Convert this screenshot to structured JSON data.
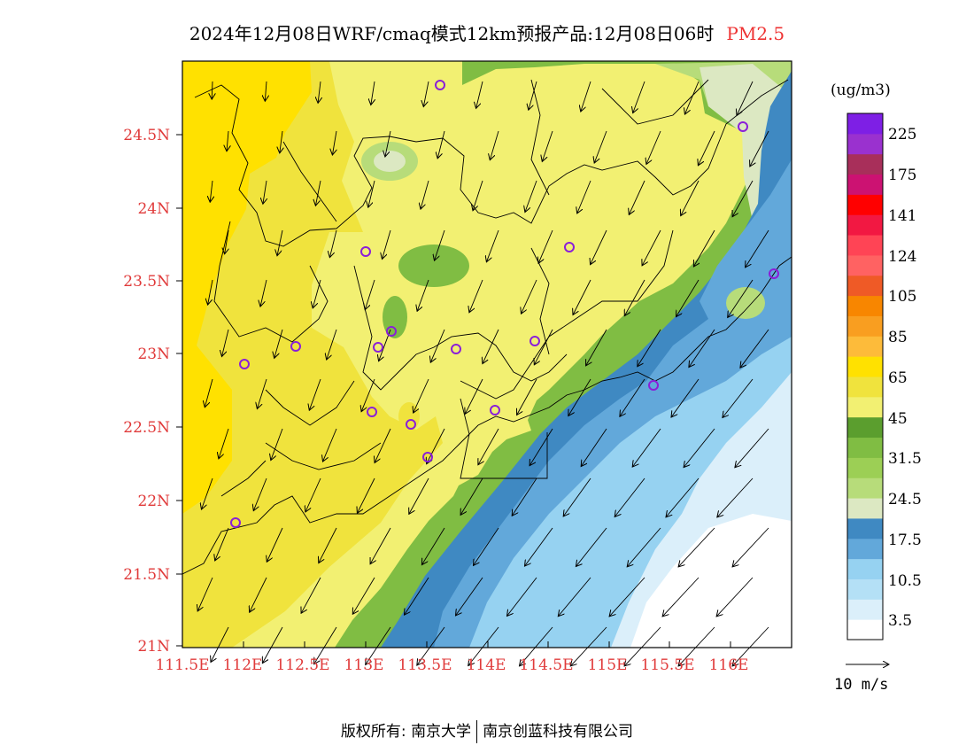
{
  "title": {
    "main": "2024年12月08日WRF/cmaq模式12km预报产品:12月08日06时",
    "pollutant": "PM2.5"
  },
  "map": {
    "lat_labels": [
      "24.5N",
      "24N",
      "23.5N",
      "23N",
      "22.5N",
      "22N",
      "21.5N",
      "21N"
    ],
    "lon_labels": [
      "111.5E",
      "112E",
      "112.5E",
      "113E",
      "113.5E",
      "114E",
      "114.5E",
      "115E",
      "115.5E",
      "116E"
    ]
  },
  "colorbar": {
    "unit": "(ug/m3)",
    "colors": [
      "#ffffff",
      "#dbeffa",
      "#b4e0f6",
      "#96d2f1",
      "#62a8da",
      "#3f89c2",
      "#dce8c2",
      "#b7dc7a",
      "#9ccf55",
      "#80bd43",
      "#5b9e2e",
      "#f2f072",
      "#f0e33d",
      "#ffe100",
      "#fdbb3a",
      "#f99e20",
      "#f88600",
      "#ef5a26",
      "#ff6262",
      "#ff4455",
      "#f21842",
      "#ff0000",
      "#cc1272",
      "#a82f5a",
      "#9a31cf",
      "#7e1fe5"
    ],
    "labels": [
      "3.5",
      "10.5",
      "17.5",
      "24.5",
      "31.5",
      "45",
      "65",
      "85",
      "105",
      "124",
      "141",
      "175",
      "225"
    ]
  },
  "wind_reference": "10 m/s",
  "copyright": {
    "label": "版权所有:",
    "org1": "南京大学",
    "org2": "南京创蓝科技有限公司"
  }
}
